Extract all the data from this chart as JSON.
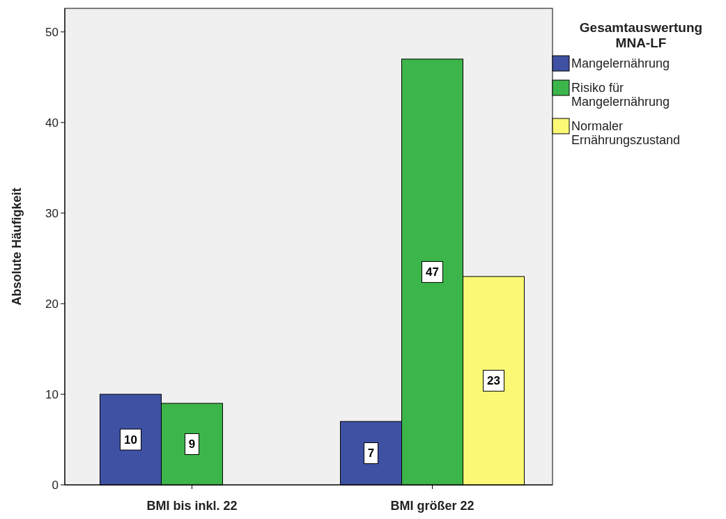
{
  "chart_data": {
    "type": "bar",
    "ylabel": "Absolute Häufigkeit",
    "legend_title": "Gesamtauswertung MNA-LF",
    "categories": [
      "BMI bis inkl. 22",
      "BMI größer 22"
    ],
    "series": [
      {
        "name": "Mangelernährung",
        "color": "#3f51a3",
        "values": [
          10,
          7
        ]
      },
      {
        "name": "Risiko für Mangelernährung",
        "color": "#3cb54a",
        "values": [
          9,
          47
        ]
      },
      {
        "name": "Normaler Ernährungszustand",
        "color": "#fbf876",
        "values": [
          null,
          23
        ]
      }
    ],
    "ylim": [
      0,
      52.6
    ],
    "yticks": [
      0,
      10,
      20,
      30,
      40,
      50
    ],
    "data_labels": true,
    "legend": "top right",
    "grid": false
  }
}
